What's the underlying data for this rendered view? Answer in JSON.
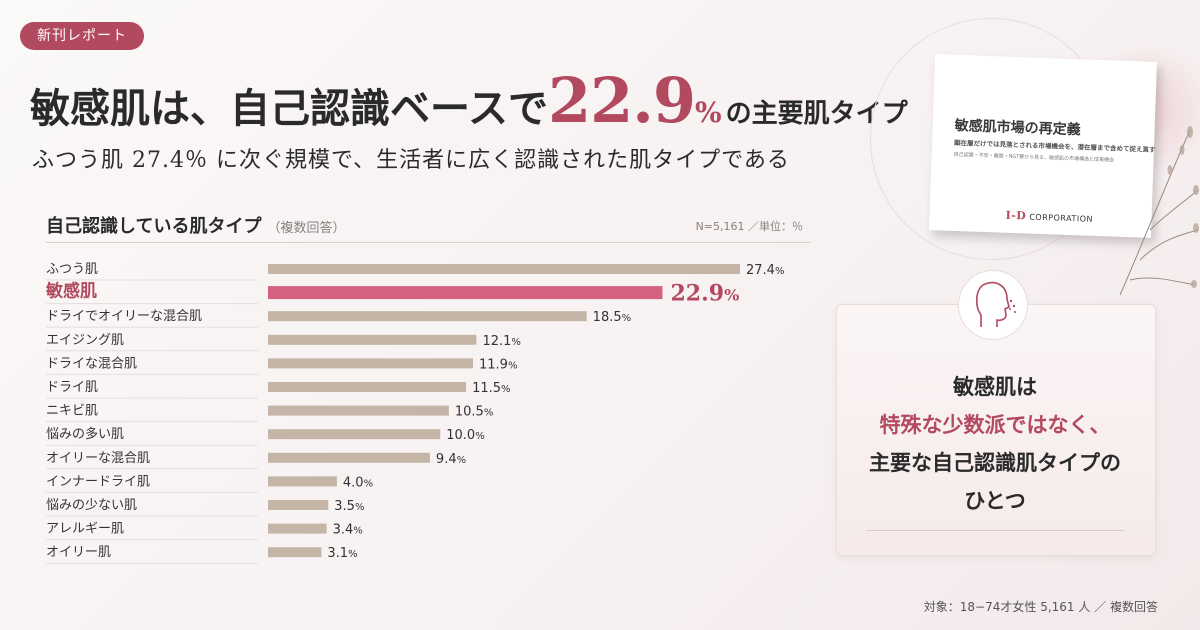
{
  "badge": "新刊レポート",
  "headline": {
    "pre": "敏感肌は、自己認識ベースで",
    "number": "22.9",
    "unit": "%",
    "post": "の主要肌タイプ"
  },
  "subhead": "ふつう肌 27.4％ に次ぐ規模で、生活者に広く認識された肌タイプである",
  "chart_header": {
    "title": "自己認識している肌タイプ",
    "qualifier": "（複数回答）",
    "note": "N=5,161 ／単位：％"
  },
  "chart_data": {
    "type": "bar",
    "orientation": "horizontal",
    "title": "自己認識している肌タイプ",
    "categories": [
      "ふつう肌",
      "敏感肌",
      "ドライでオイリーな混合肌",
      "エイジング肌",
      "ドライな混合肌",
      "ドライ肌",
      "ニキビ肌",
      "悩みの多い肌",
      "オイリーな混合肌",
      "インナードライ肌",
      "悩みの少ない肌",
      "アレルギー肌",
      "オイリー肌"
    ],
    "values": [
      27.4,
      22.9,
      18.5,
      12.1,
      11.9,
      11.5,
      10.5,
      10.0,
      9.4,
      4.0,
      3.5,
      3.4,
      3.1
    ],
    "value_labels": [
      "27.4",
      "22.9",
      "18.5",
      "12.1",
      "11.9",
      "11.5",
      "10.5",
      "10.0",
      "9.4",
      "4.0",
      "3.5",
      "3.4",
      "3.1"
    ],
    "unit": "%",
    "highlight": "敏感肌",
    "colors": {
      "bar": "#c4b5a7",
      "highlight": "#d4617f"
    },
    "xlim": [
      0,
      30
    ]
  },
  "report": {
    "title": "敏感肌市場の再定義",
    "subtitle": "顕在層だけでは見落とされる市場機会を、潜在層まで含めて捉え直す",
    "small": "自己認識・不安・離脱・NGT要から見る、敏感肌の市場構造と成長機会",
    "logo_mark": "I‑D",
    "logo_text": "CORPORATION"
  },
  "callout": {
    "line1": "敏感肌は",
    "line2": "特殊な少数派ではなく、",
    "line3": "主要な自己認識肌タイプの",
    "line4": "ひとつ",
    "icon": "face-profile-icon"
  },
  "footer": "対象：18−74才女性 5,161 人 ／ 複数回答",
  "colors": {
    "accent": "#b2495e",
    "bar": "#c4b5a7",
    "highlight": "#d4617f"
  }
}
